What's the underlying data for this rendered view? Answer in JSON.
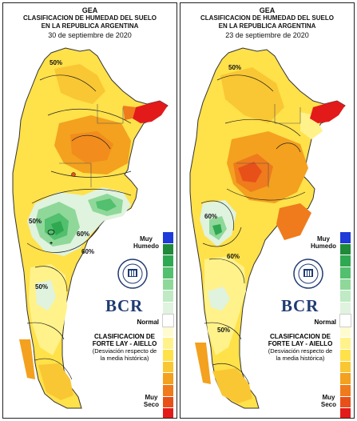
{
  "panels": [
    {
      "org": "GEA",
      "title_line1": "CLASIFICACION DE HUMEDAD DEL SUELO",
      "title_line2": "EN LA REPUBLICA ARGENTINA",
      "date": "30 de septiembre de 2020",
      "contour_labels": [
        "50%",
        "50%",
        "60%",
        "60%",
        "50%"
      ],
      "colors": {
        "dry": "#f5a623"
      }
    },
    {
      "org": "GEA",
      "title_line1": "CLASIFICACION DE HUMEDAD DEL SUELO",
      "title_line2": "EN LA REPUBLICA ARGENTINA",
      "date": "23 de septiembre de 2020",
      "contour_labels": [
        "50%",
        "60%",
        "60%",
        "50%"
      ],
      "colors": {
        "dry": "#f5a623"
      }
    }
  ],
  "legend": {
    "top_label_1": "Muy",
    "top_label_2": "Humedo",
    "normal_label": "Normal",
    "bottom_label_1": "Muy",
    "bottom_label_2": "Seco",
    "colors": [
      "#1e3ad8",
      "#1f8a3a",
      "#2fa852",
      "#52c06e",
      "#8fd89a",
      "#bfeac4",
      "#dff3df",
      "#ffffff",
      "#fffbd0",
      "#fff28a",
      "#ffe14a",
      "#f9c733",
      "#f3a11f",
      "#ef7b1c",
      "#e8501a",
      "#e31a1a"
    ]
  },
  "classification": {
    "line1": "CLASIFICACION DE",
    "line2": "FORTE LAY - AIELLO",
    "line3": "(Desviación respecto de",
    "line4": "la media histórica)"
  },
  "logo": {
    "text": "BCR"
  }
}
